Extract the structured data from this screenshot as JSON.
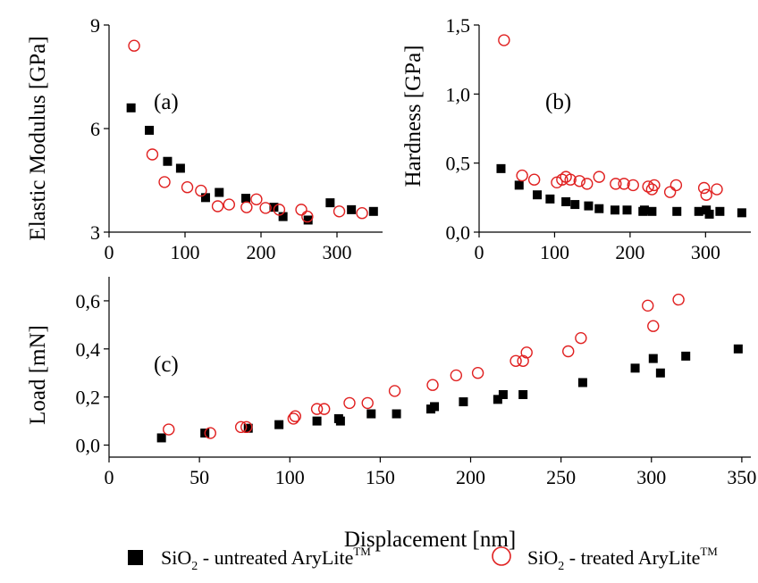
{
  "chart_data": [
    {
      "type": "scatter",
      "panel_label": "(a)",
      "xlabel": "",
      "ylabel": "Elastic Modulus [GPa]",
      "xlim": [
        0,
        360
      ],
      "ylim": [
        3,
        9
      ],
      "x_ticks": [
        "0",
        "100",
        "200",
        "300"
      ],
      "y_ticks": [
        "3",
        "6",
        "9"
      ],
      "series": [
        {
          "name": "SiO2 - untreated AryLite",
          "marker": "filled-square",
          "color": "#000000",
          "points": [
            [
              29,
              6.6
            ],
            [
              53,
              5.95
            ],
            [
              77,
              5.05
            ],
            [
              94,
              4.85
            ],
            [
              127,
              4.0
            ],
            [
              145,
              4.15
            ],
            [
              180,
              3.98
            ],
            [
              217,
              3.72
            ],
            [
              229,
              3.45
            ],
            [
              262,
              3.35
            ],
            [
              291,
              3.85
            ],
            [
              319,
              3.65
            ],
            [
              348,
              3.6
            ]
          ]
        },
        {
          "name": "SiO2 - treated AryLite",
          "marker": "open-circle",
          "color": "#e02020",
          "points": [
            [
              33,
              8.4
            ],
            [
              57,
              5.25
            ],
            [
              73,
              4.45
            ],
            [
              103,
              4.3
            ],
            [
              121,
              4.2
            ],
            [
              143,
              3.75
            ],
            [
              158,
              3.8
            ],
            [
              181,
              3.72
            ],
            [
              194,
              3.95
            ],
            [
              206,
              3.7
            ],
            [
              224,
              3.65
            ],
            [
              253,
              3.65
            ],
            [
              261,
              3.45
            ],
            [
              303,
              3.6
            ],
            [
              333,
              3.55
            ]
          ]
        }
      ]
    },
    {
      "type": "scatter",
      "panel_label": "(b)",
      "xlabel": "",
      "ylabel": "Hardness [GPa]",
      "xlim": [
        0,
        360
      ],
      "ylim": [
        0,
        1.5
      ],
      "x_ticks": [
        "0",
        "100",
        "200",
        "300"
      ],
      "y_ticks": [
        "0,0",
        "0,5",
        "1,0",
        "1,5"
      ],
      "series": [
        {
          "name": "SiO2 - untreated AryLite",
          "marker": "filled-square",
          "color": "#000000",
          "points": [
            [
              29,
              0.46
            ],
            [
              53,
              0.34
            ],
            [
              77,
              0.27
            ],
            [
              94,
              0.24
            ],
            [
              115,
              0.22
            ],
            [
              127,
              0.2
            ],
            [
              145,
              0.19
            ],
            [
              159,
              0.17
            ],
            [
              180,
              0.16
            ],
            [
              196,
              0.16
            ],
            [
              217,
              0.15
            ],
            [
              219,
              0.16
            ],
            [
              229,
              0.15
            ],
            [
              262,
              0.15
            ],
            [
              291,
              0.15
            ],
            [
              301,
              0.16
            ],
            [
              305,
              0.13
            ],
            [
              319,
              0.15
            ],
            [
              348,
              0.14
            ]
          ]
        },
        {
          "name": "SiO2 - treated AryLite",
          "marker": "open-circle",
          "color": "#e02020",
          "points": [
            [
              33,
              1.39
            ],
            [
              57,
              0.41
            ],
            [
              73,
              0.38
            ],
            [
              103,
              0.36
            ],
            [
              110,
              0.38
            ],
            [
              115,
              0.4
            ],
            [
              121,
              0.38
            ],
            [
              133,
              0.37
            ],
            [
              143,
              0.35
            ],
            [
              159,
              0.4
            ],
            [
              181,
              0.35
            ],
            [
              192,
              0.35
            ],
            [
              204,
              0.34
            ],
            [
              224,
              0.33
            ],
            [
              229,
              0.31
            ],
            [
              232,
              0.34
            ],
            [
              253,
              0.29
            ],
            [
              261,
              0.34
            ],
            [
              298,
              0.32
            ],
            [
              301,
              0.27
            ],
            [
              315,
              0.31
            ]
          ]
        }
      ]
    },
    {
      "type": "scatter",
      "panel_label": "(c)",
      "xlabel": "Displacement [nm]",
      "ylabel": "Load [mN]",
      "xlim": [
        0,
        355
      ],
      "ylim": [
        -0.05,
        0.7
      ],
      "x_ticks": [
        "0",
        "50",
        "100",
        "150",
        "200",
        "250",
        "300",
        "350"
      ],
      "y_ticks": [
        "0,0",
        "0,2",
        "0,4",
        "0,6"
      ],
      "series": [
        {
          "name": "SiO2 - untreated AryLite",
          "marker": "filled-square",
          "color": "#000000",
          "points": [
            [
              29,
              0.03
            ],
            [
              53,
              0.05
            ],
            [
              77,
              0.07
            ],
            [
              94,
              0.085
            ],
            [
              115,
              0.1
            ],
            [
              127,
              0.11
            ],
            [
              128,
              0.1
            ],
            [
              145,
              0.13
            ],
            [
              159,
              0.13
            ],
            [
              178,
              0.15
            ],
            [
              180,
              0.16
            ],
            [
              196,
              0.18
            ],
            [
              215,
              0.19
            ],
            [
              218,
              0.21
            ],
            [
              229,
              0.21
            ],
            [
              262,
              0.26
            ],
            [
              291,
              0.32
            ],
            [
              301,
              0.36
            ],
            [
              305,
              0.3
            ],
            [
              319,
              0.37
            ],
            [
              348,
              0.4
            ]
          ]
        },
        {
          "name": "SiO2 - treated AryLite",
          "marker": "open-circle",
          "color": "#e02020",
          "points": [
            [
              33,
              0.065
            ],
            [
              56,
              0.05
            ],
            [
              73,
              0.075
            ],
            [
              76,
              0.075
            ],
            [
              102,
              0.11
            ],
            [
              103,
              0.12
            ],
            [
              115,
              0.15
            ],
            [
              119,
              0.15
            ],
            [
              133,
              0.175
            ],
            [
              143,
              0.175
            ],
            [
              158,
              0.225
            ],
            [
              179,
              0.25
            ],
            [
              192,
              0.29
            ],
            [
              204,
              0.3
            ],
            [
              225,
              0.35
            ],
            [
              229,
              0.35
            ],
            [
              231,
              0.385
            ],
            [
              254,
              0.39
            ],
            [
              261,
              0.445
            ],
            [
              298,
              0.58
            ],
            [
              301,
              0.495
            ],
            [
              315,
              0.605
            ]
          ]
        }
      ]
    }
  ],
  "legend": {
    "entries": [
      {
        "text": "SiO",
        "sub": "2",
        "rest": " - untreated AryLite",
        "sup": "TM",
        "marker": "filled-square"
      },
      {
        "text": "SiO",
        "sub": "2",
        "rest": " - treated AryLite",
        "sup": "TM",
        "marker": "open-circle"
      }
    ]
  }
}
